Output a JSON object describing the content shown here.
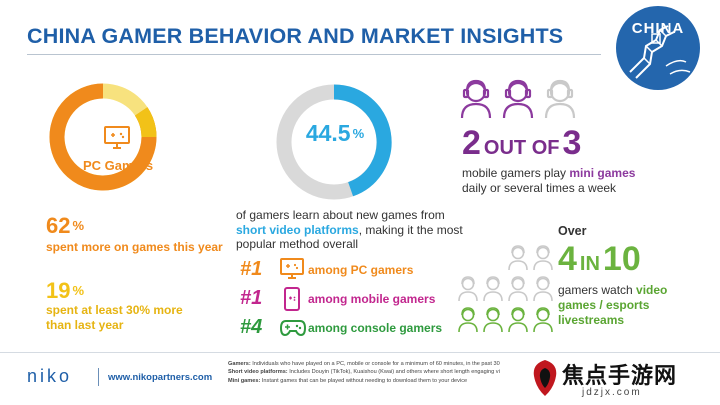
{
  "title": "CHINA GAMER BEHAVIOR AND MARKET INSIGHTS",
  "badge_label": "CHINA",
  "colors": {
    "blue": "#1f5fa8",
    "orange": "#f08a1c",
    "yellow": "#f2c218",
    "cyan": "#2aa8e0",
    "purple": "#7a2d8c",
    "magenta": "#c2268e",
    "green": "#6bb33f"
  },
  "pc": {
    "label": "PC Gamers",
    "stat1_value": "62",
    "stat1_text": "spent more on games this year",
    "stat2_value": "19",
    "stat2_text": "spent at least 30% more than last year",
    "percent_sign": "%"
  },
  "short_video": {
    "value": "44.5",
    "percent_sign": "%",
    "text_before": "of gamers learn about new games from ",
    "highlight": "short video platforms",
    "text_after": ", making it the most popular method overall",
    "ranks": [
      {
        "rank": "#1",
        "label": "among PC gamers",
        "icon": "pc-gamepad-icon",
        "color": "#f08a1c"
      },
      {
        "rank": "#1",
        "label": "among mobile gamers",
        "icon": "mobile-phone-icon",
        "color": "#c2268e"
      },
      {
        "rank": "#4",
        "label": "among console gamers",
        "icon": "controller-icon",
        "color": "#2e9a3e"
      }
    ]
  },
  "mini_games": {
    "num1": "2",
    "word1": "OUT OF",
    "num2": "3",
    "text_before": "mobile gamers play ",
    "highlight": "mini games",
    "text_after": " daily or several times a week",
    "heads_filled": 2,
    "heads_total": 3
  },
  "esports": {
    "over": "Over",
    "num1": "4",
    "word1": "IN",
    "num2": "10",
    "text_before": "gamers watch ",
    "highlight": "video games / esports livestreams",
    "heads_filled": 4,
    "heads_total": 10
  },
  "footer": {
    "logo": "niko",
    "url": "www.nikopartners.com",
    "def1_term": "Gamers:",
    "def1_text": " Individuals who have played on a PC, mobile or console for a minimum of 60 minutes, in the past 30",
    "def2_term": "Short video platforms:",
    "def2_text": " Includes Douyin (TikTok), Kuaishou (Kwai) and others where short length engaging vi",
    "def3_term": "Mini games:",
    "def3_text": " Instant games that can be played without needing to download them to your device"
  },
  "watermark": {
    "text": "焦点手游网",
    "url": "jdzjx.com"
  }
}
